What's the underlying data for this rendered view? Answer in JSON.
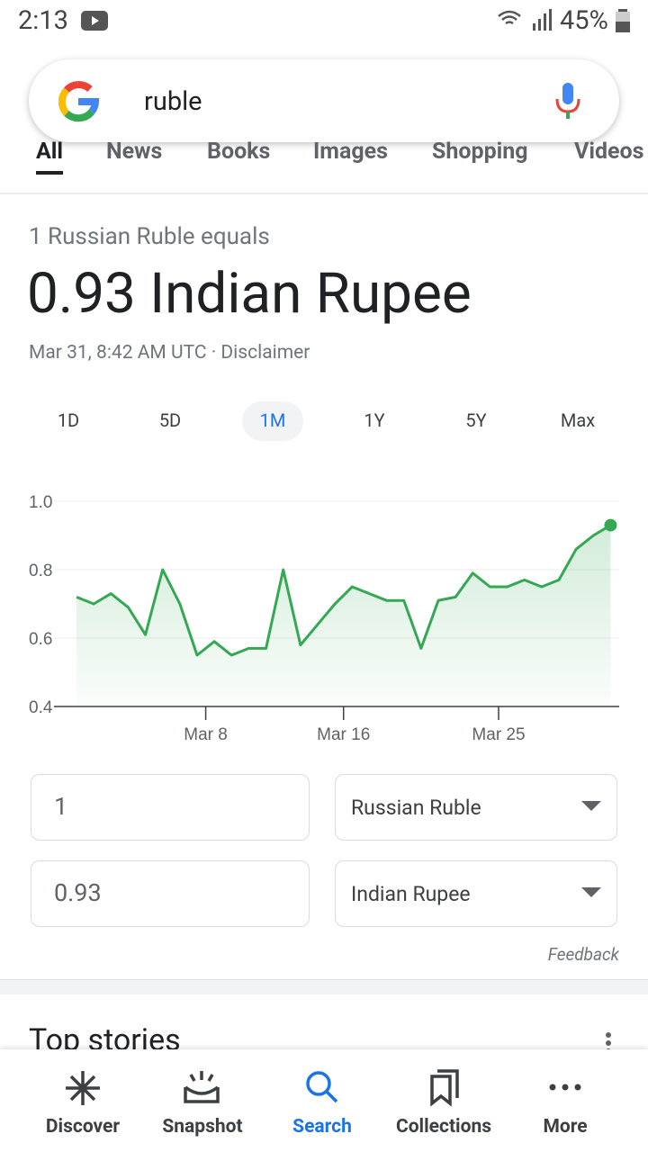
{
  "status_bar": {
    "time": "2:13",
    "battery": "45%"
  },
  "search": {
    "query": "ruble"
  },
  "tabs": [
    "All",
    "News",
    "Books",
    "Images",
    "Shopping",
    "Videos"
  ],
  "converter": {
    "intro": "1 Russian Ruble equals",
    "result": "0.93 Indian Rupee",
    "timestamp": "Mar 31, 8:42 AM UTC · Disclaimer",
    "ranges": [
      "1D",
      "5D",
      "1M",
      "1Y",
      "5Y",
      "Max"
    ],
    "from_amount": "1",
    "from_currency": "Russian Ruble",
    "to_amount": "0.93",
    "to_currency": "Indian Rupee",
    "feedback": "Feedback"
  },
  "chart_data": {
    "type": "line",
    "x": [
      0.5,
      1.5,
      2.5,
      3.5,
      4.5,
      5.5,
      6.5,
      7.5,
      8.5,
      9.5,
      10.5,
      11.5,
      12.5,
      13.5,
      14.5,
      15.5,
      16.5,
      17.5,
      18.5,
      19.5,
      20.5,
      21.5,
      22.5,
      23.5,
      24.5,
      25.5,
      26.5,
      27.5,
      28.5,
      29.5,
      30.5,
      31.5
    ],
    "series": [
      {
        "color": "#34a853",
        "values": [
          0.72,
          0.7,
          0.73,
          0.69,
          0.61,
          0.8,
          0.7,
          0.55,
          0.59,
          0.55,
          0.57,
          0.57,
          0.8,
          0.58,
          0.64,
          0.7,
          0.75,
          0.73,
          0.71,
          0.71,
          0.57,
          0.71,
          0.72,
          0.79,
          0.75,
          0.75,
          0.77,
          0.75,
          0.77,
          0.86,
          0.9,
          0.93
        ]
      }
    ],
    "xlim": [
      0.5,
      32
    ],
    "xticks": [
      {
        "value": 8,
        "label": "Mar 8"
      },
      {
        "value": 16,
        "label": "Mar 16"
      },
      {
        "value": 25,
        "label": "Mar 25"
      }
    ],
    "ylim": [
      0.4,
      1.0
    ],
    "yticks": [
      0.4,
      0.6,
      0.8,
      {
        "value": 1,
        "label": "1.0"
      }
    ],
    "grid": true
  },
  "top_stories": {
    "title": "Top stories"
  },
  "bottom_nav": [
    "Discover",
    "Snapshot",
    "Search",
    "Collections",
    "More"
  ]
}
